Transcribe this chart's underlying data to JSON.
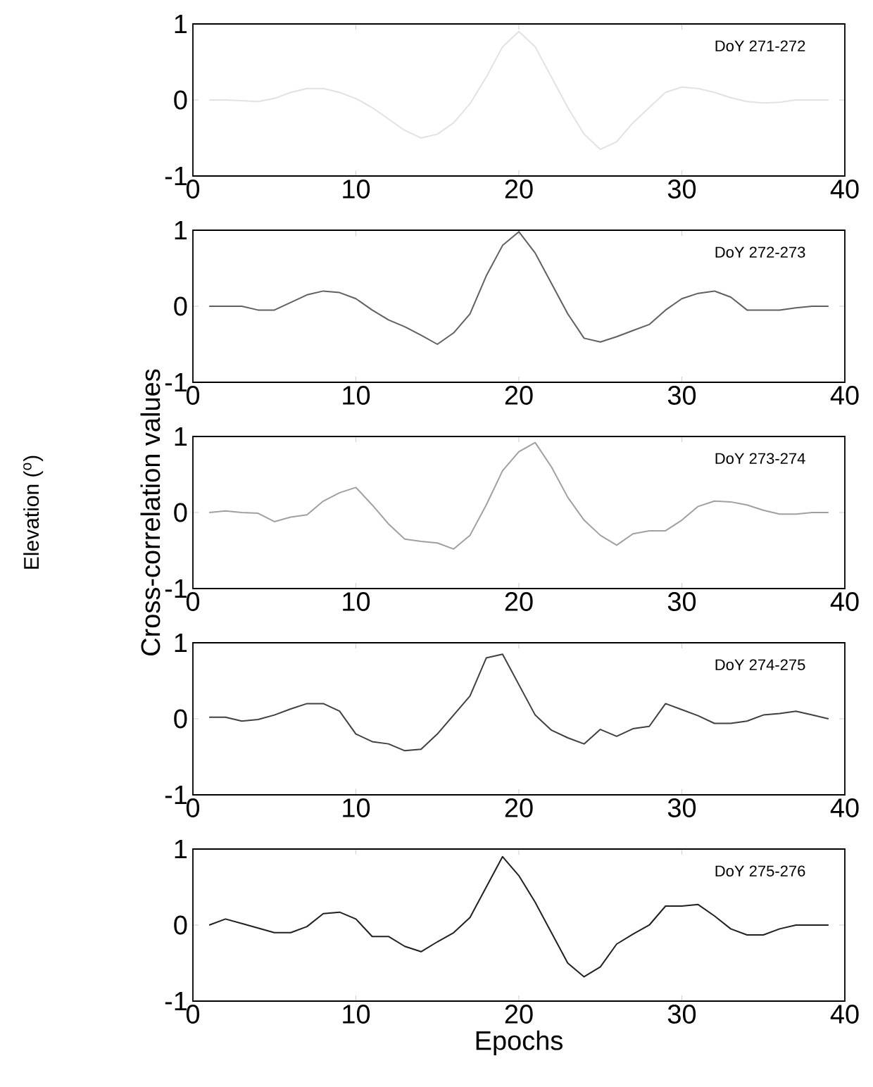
{
  "chart_data": [
    {
      "type": "line",
      "title": "DoY 271-272",
      "x": [
        1,
        2,
        3,
        4,
        5,
        6,
        7,
        8,
        9,
        10,
        11,
        12,
        13,
        14,
        15,
        16,
        17,
        18,
        19,
        20,
        21,
        22,
        23,
        24,
        25,
        26,
        27,
        28,
        29,
        30,
        31,
        32,
        33,
        34,
        35,
        36,
        37,
        38,
        39
      ],
      "xlim": [
        0,
        40
      ],
      "ylim": [
        -1,
        1
      ],
      "xticks": [
        0,
        10,
        20,
        30,
        40
      ],
      "yticks": [
        -1,
        0,
        1
      ],
      "marker": "none",
      "grid": false,
      "series": [
        {
          "color": "#e2e2e2",
          "values": [
            0,
            0,
            -0.01,
            -0.02,
            0.02,
            0.1,
            0.15,
            0.15,
            0.1,
            0.02,
            -0.1,
            -0.25,
            -0.4,
            -0.5,
            -0.45,
            -0.3,
            -0.05,
            0.3,
            0.7,
            0.9,
            0.7,
            0.3,
            -0.1,
            -0.45,
            -0.65,
            -0.55,
            -0.3,
            -0.1,
            0.1,
            0.17,
            0.15,
            0.1,
            0.03,
            -0.02,
            -0.04,
            -0.03,
            0,
            0,
            0
          ]
        }
      ]
    },
    {
      "type": "line",
      "title": "DoY 272-273",
      "x": [
        1,
        2,
        3,
        4,
        5,
        6,
        7,
        8,
        9,
        10,
        11,
        12,
        13,
        14,
        15,
        16,
        17,
        18,
        19,
        20,
        21,
        22,
        23,
        24,
        25,
        26,
        27,
        28,
        29,
        30,
        31,
        32,
        33,
        34,
        35,
        36,
        37,
        38,
        39
      ],
      "xlim": [
        0,
        40
      ],
      "ylim": [
        -1,
        1
      ],
      "xticks": [
        0,
        10,
        20,
        30,
        40
      ],
      "yticks": [
        -1,
        0,
        1
      ],
      "marker": "none",
      "grid": false,
      "series": [
        {
          "color": "#606060",
          "values": [
            0,
            0,
            0,
            -0.05,
            -0.05,
            0.05,
            0.15,
            0.2,
            0.18,
            0.1,
            -0.05,
            -0.18,
            -0.27,
            -0.38,
            -0.5,
            -0.35,
            -0.1,
            0.4,
            0.8,
            0.98,
            0.7,
            0.3,
            -0.1,
            -0.42,
            -0.47,
            -0.4,
            -0.32,
            -0.24,
            -0.05,
            0.1,
            0.17,
            0.2,
            0.12,
            -0.05,
            -0.05,
            -0.05,
            -0.02,
            0,
            0
          ]
        }
      ]
    },
    {
      "type": "line",
      "title": "DoY 273-274",
      "ylabel": "Cross-correlation values",
      "annotations": [
        "Elevation ($^{o}$)"
      ],
      "x": [
        1,
        2,
        3,
        4,
        5,
        6,
        7,
        8,
        9,
        10,
        11,
        12,
        13,
        14,
        15,
        16,
        17,
        18,
        19,
        20,
        21,
        22,
        23,
        24,
        25,
        26,
        27,
        28,
        29,
        30,
        31,
        32,
        33,
        34,
        35,
        36,
        37,
        38,
        39
      ],
      "xlim": [
        0,
        40
      ],
      "ylim": [
        -1,
        1
      ],
      "xticks": [
        0,
        10,
        20,
        30,
        40
      ],
      "yticks": [
        -1,
        0,
        1
      ],
      "marker": "none",
      "grid": false,
      "series": [
        {
          "color": "#a0a0a0",
          "values": [
            0,
            0.02,
            0,
            -0.01,
            -0.12,
            -0.06,
            -0.03,
            0.15,
            0.26,
            0.33,
            0.1,
            -0.15,
            -0.35,
            -0.38,
            -0.4,
            -0.48,
            -0.3,
            0.1,
            0.55,
            0.8,
            0.92,
            0.6,
            0.2,
            -0.1,
            -0.3,
            -0.43,
            -0.28,
            -0.24,
            -0.24,
            -0.1,
            0.08,
            0.15,
            0.14,
            0.1,
            0.03,
            -0.02,
            -0.02,
            0,
            0
          ]
        }
      ]
    },
    {
      "type": "line",
      "title": "DoY 274-275",
      "x": [
        1,
        2,
        3,
        4,
        5,
        6,
        7,
        8,
        9,
        10,
        11,
        12,
        13,
        14,
        15,
        16,
        17,
        18,
        19,
        20,
        21,
        22,
        23,
        24,
        25,
        26,
        27,
        28,
        29,
        30,
        31,
        32,
        33,
        34,
        35,
        36,
        37,
        38,
        39
      ],
      "xlim": [
        0,
        40
      ],
      "ylim": [
        -1,
        1
      ],
      "xticks": [
        0,
        10,
        20,
        30,
        40
      ],
      "yticks": [
        -1,
        0,
        1
      ],
      "marker": "none",
      "grid": false,
      "series": [
        {
          "color": "#404040",
          "values": [
            0.02,
            0.02,
            -0.03,
            -0.01,
            0.05,
            0.13,
            0.2,
            0.2,
            0.1,
            -0.2,
            -0.3,
            -0.33,
            -0.42,
            -0.4,
            -0.2,
            0.05,
            0.3,
            0.8,
            0.85,
            0.45,
            0.05,
            -0.15,
            -0.25,
            -0.33,
            -0.14,
            -0.23,
            -0.13,
            -0.1,
            0.2,
            0.12,
            0.04,
            -0.06,
            -0.06,
            -0.03,
            0.05,
            0.07,
            0.1,
            0.05,
            0
          ]
        }
      ]
    },
    {
      "type": "line",
      "title": "DoY 275-276",
      "xlabel": "Epochs",
      "x": [
        1,
        2,
        3,
        4,
        5,
        6,
        7,
        8,
        9,
        10,
        11,
        12,
        13,
        14,
        15,
        16,
        17,
        18,
        19,
        20,
        21,
        22,
        23,
        24,
        25,
        26,
        27,
        28,
        29,
        30,
        31,
        32,
        33,
        34,
        35,
        36,
        37,
        38,
        39
      ],
      "xlim": [
        0,
        40
      ],
      "ylim": [
        -1,
        1
      ],
      "xticks": [
        0,
        10,
        20,
        30,
        40
      ],
      "yticks": [
        -1,
        0,
        1
      ],
      "marker": "none",
      "grid": false,
      "series": [
        {
          "color": "#202020",
          "values": [
            0,
            0.08,
            0.02,
            -0.04,
            -0.1,
            -0.1,
            -0.02,
            0.15,
            0.17,
            0.08,
            -0.15,
            -0.15,
            -0.28,
            -0.35,
            -0.22,
            -0.1,
            0.1,
            0.5,
            0.9,
            0.65,
            0.3,
            -0.1,
            -0.5,
            -0.68,
            -0.55,
            -0.25,
            -0.12,
            0,
            0.25,
            0.25,
            0.27,
            0.12,
            -0.05,
            -0.13,
            -0.13,
            -0.05,
            0,
            0,
            0
          ]
        }
      ]
    }
  ]
}
